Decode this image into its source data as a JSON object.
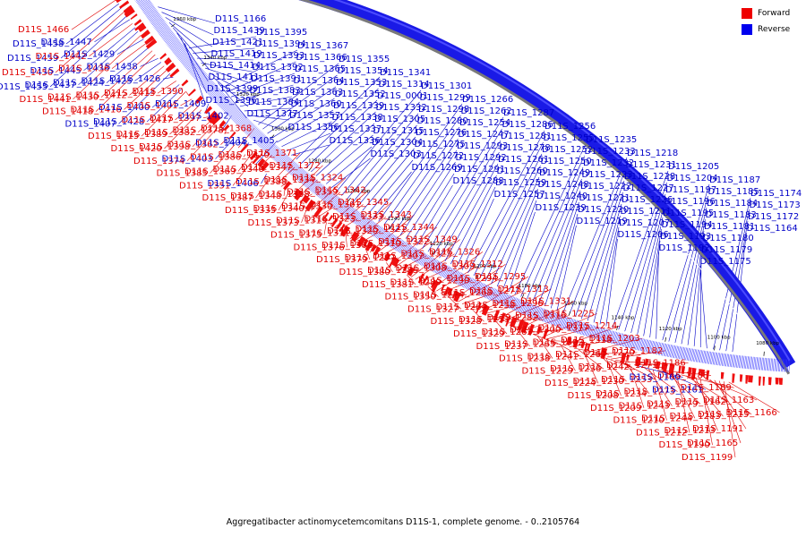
{
  "caption": "Aggregatibacter actinomycetemcomitans D11S-1, complete genome. - 0..2105764",
  "legend": [
    {
      "label": "Forward",
      "color": "#ee0000"
    },
    {
      "label": "Reverse",
      "color": "#0000ee"
    }
  ],
  "colors": {
    "forward": "#e00000",
    "reverse": "#0000c8",
    "ring_reverse": "#1a1ae6",
    "ring_forward": "#f01010",
    "backbone": "#7a7a7a"
  },
  "ticks": [
    "1080 kbp",
    "1100 kbp",
    "1120 kbp",
    "1140 kbp",
    "1160 kbp",
    "1180 kbp",
    "1200 kbp",
    "1220 kbp",
    "1240 kbp",
    "1260 kbp",
    "1280 kbp",
    "1300 kbp",
    "1320 kbp",
    "1340 kbp",
    "1360 kbp",
    "1380 kbp"
  ],
  "labels": [
    {
      "t": "D11S_1466",
      "s": "f"
    },
    {
      "t": "D11S_1458",
      "s": "r"
    },
    {
      "t": "D11S_1459",
      "s": "r"
    },
    {
      "t": "D11S_1450",
      "s": "f"
    },
    {
      "t": "D11S_1455",
      "s": "r"
    },
    {
      "t": "D11S_1447",
      "s": "r"
    },
    {
      "t": "D11S_1442",
      "s": "f"
    },
    {
      "t": "D11S_1445",
      "s": "r"
    },
    {
      "t": "D11S_1437",
      "s": "r"
    },
    {
      "t": "D11S_1441",
      "s": "f"
    },
    {
      "t": "D11S_1429",
      "s": "r"
    },
    {
      "t": "D11S_1436",
      "s": "f"
    },
    {
      "t": "D11S_1424",
      "s": "r"
    },
    {
      "t": "D11S_1430",
      "s": "f"
    },
    {
      "t": "D11S_1418",
      "s": "f"
    },
    {
      "t": "D11S_1438",
      "s": "r"
    },
    {
      "t": "D11S_1425",
      "s": "r"
    },
    {
      "t": "D11S_1412",
      "s": "f"
    },
    {
      "t": "D11S_1416",
      "s": "f"
    },
    {
      "t": "D11S_1407",
      "s": "r"
    },
    {
      "t": "D11S_1426",
      "s": "r"
    },
    {
      "t": "D11S_1413",
      "s": "f"
    },
    {
      "t": "D11S_1400",
      "s": "r"
    },
    {
      "t": "D11S_1428",
      "s": "r"
    },
    {
      "t": "D11S_1415",
      "s": "f"
    },
    {
      "t": "D11S_1390",
      "s": "f"
    },
    {
      "t": "D11S_1401",
      "s": "f"
    },
    {
      "t": "D11S_1417",
      "s": "f"
    },
    {
      "t": "D11S_1389",
      "s": "f"
    },
    {
      "t": "D11S_1420",
      "s": "f"
    },
    {
      "t": "D11S_1409",
      "s": "r"
    },
    {
      "t": "D11S_1397",
      "s": "f"
    },
    {
      "t": "D11S_1382",
      "s": "f"
    },
    {
      "t": "D11S_1398",
      "s": "f"
    },
    {
      "t": "D11S_1374",
      "s": "f"
    },
    {
      "t": "D11S_1402",
      "s": "r"
    },
    {
      "t": "D11S_1378",
      "s": "f"
    },
    {
      "t": "D11S_1362",
      "s": "f"
    },
    {
      "t": "D11S_1403",
      "s": "r"
    },
    {
      "t": "D11S_1385",
      "s": "f"
    },
    {
      "t": "D11S_1368",
      "s": "f"
    },
    {
      "t": "D11S_1404",
      "s": "r"
    },
    {
      "t": "D11S_1386",
      "s": "f"
    },
    {
      "t": "D11S_1369",
      "s": "f"
    },
    {
      "t": "D11S_1351",
      "s": "f"
    },
    {
      "t": "D11S_1405",
      "s": "r"
    },
    {
      "t": "D11S_1370",
      "s": "f"
    },
    {
      "t": "D11S_1346",
      "s": "f"
    },
    {
      "t": "D11S_1406",
      "s": "r"
    },
    {
      "t": "D11S_1387",
      "s": "f"
    },
    {
      "t": "D11S_1371",
      "s": "f"
    },
    {
      "t": "D11S_1347",
      "s": "f"
    },
    {
      "t": "D11S_1388",
      "s": "f"
    },
    {
      "t": "D11S_1348",
      "s": "f"
    },
    {
      "t": "D11S_1335",
      "s": "f"
    },
    {
      "t": "D11S_1372",
      "s": "f"
    },
    {
      "t": "D11S_1334",
      "s": "f"
    },
    {
      "t": "D11S_1358",
      "s": "f"
    },
    {
      "t": "D11S_1340",
      "s": "f"
    },
    {
      "t": "D11S_1373",
      "s": "f"
    },
    {
      "t": "D11S_1324",
      "s": "f"
    },
    {
      "t": "D11S_1359",
      "s": "f"
    },
    {
      "t": "D11S_1330",
      "s": "f"
    },
    {
      "t": "D11S_1319",
      "s": "f"
    },
    {
      "t": "D11S_1375",
      "s": "f"
    },
    {
      "t": "D11S_1342",
      "s": "f"
    },
    {
      "t": "D11S_1361",
      "s": "f"
    },
    {
      "t": "D11S_1323",
      "s": "f"
    },
    {
      "t": "D11S_1311",
      "s": "f"
    },
    {
      "t": "D11S_1376",
      "s": "f"
    },
    {
      "t": "D11S_1345",
      "s": "f"
    },
    {
      "t": "D11S_1333",
      "s": "f"
    },
    {
      "t": "D11S_1320",
      "s": "f"
    },
    {
      "t": "D11S_1306",
      "s": "f"
    },
    {
      "t": "D11S_1379",
      "s": "f"
    },
    {
      "t": "D11S_1343",
      "s": "f"
    },
    {
      "t": "D11S_1321",
      "s": "f"
    },
    {
      "t": "D11S_1310",
      "s": "f"
    },
    {
      "t": "D11S_1297",
      "s": "f"
    },
    {
      "t": "D11S_1380",
      "s": "f"
    },
    {
      "t": "D11S_1344",
      "s": "f"
    },
    {
      "t": "D11S_1322",
      "s": "f"
    },
    {
      "t": "D11S_1307",
      "s": "f"
    },
    {
      "t": "D11S_1285",
      "s": "f"
    },
    {
      "t": "D11S_1381",
      "s": "f"
    },
    {
      "t": "D11S_1349",
      "s": "f"
    },
    {
      "t": "D11S_1325",
      "s": "f"
    },
    {
      "t": "D11S_1308",
      "s": "f"
    },
    {
      "t": "D11S_1289",
      "s": "f"
    },
    {
      "t": "D11S_1350",
      "s": "f"
    },
    {
      "t": "D11S_1326",
      "s": "f"
    },
    {
      "t": "D11S_1309",
      "s": "f"
    },
    {
      "t": "D11S_1290",
      "s": "f"
    },
    {
      "t": "D11S_1274",
      "s": "f"
    },
    {
      "t": "D11S_1327",
      "s": "f"
    },
    {
      "t": "D11S_1312",
      "s": "f"
    },
    {
      "t": "D11S_1294",
      "s": "f"
    },
    {
      "t": "D11S_1268",
      "s": "f"
    },
    {
      "t": "D11S_1264",
      "s": "f"
    },
    {
      "t": "D11S_1328",
      "s": "f"
    },
    {
      "t": "D11S_1295",
      "s": "f"
    },
    {
      "t": "D11S_1277",
      "s": "f"
    },
    {
      "t": "D11S_1258",
      "s": "f"
    },
    {
      "t": "D11S_1251",
      "s": "f"
    },
    {
      "t": "D11S_1329",
      "s": "f"
    },
    {
      "t": "D11S_1313",
      "s": "f"
    },
    {
      "t": "D11S_1296",
      "s": "f"
    },
    {
      "t": "D11S_1282",
      "s": "f"
    },
    {
      "t": "D11S_1263",
      "s": "f"
    },
    {
      "t": "D11S_1237",
      "s": "f"
    },
    {
      "t": "D11S_1331",
      "s": "f"
    },
    {
      "t": "D11S_1316",
      "s": "f"
    },
    {
      "t": "D11S_1300",
      "s": "f"
    },
    {
      "t": "D11S_1265",
      "s": "f"
    },
    {
      "t": "D11S_1238",
      "s": "f"
    },
    {
      "t": "D11S_1225",
      "s": "f"
    },
    {
      "t": "D11S_1317",
      "s": "f"
    },
    {
      "t": "D11S_1302",
      "s": "f"
    },
    {
      "t": "D11S_1241",
      "s": "f"
    },
    {
      "t": "D11S_1229",
      "s": "f"
    },
    {
      "t": "D11S_1214",
      "s": "f"
    },
    {
      "t": "D11S_1318",
      "s": "f"
    },
    {
      "t": "D11S_1267",
      "s": "f"
    },
    {
      "t": "D11S_1236",
      "s": "f"
    },
    {
      "t": "D11S_1224",
      "s": "f"
    },
    {
      "t": "D11S_1203",
      "s": "f"
    },
    {
      "t": "D11S_1270",
      "s": "f"
    },
    {
      "t": "D11S_1242",
      "s": "f"
    },
    {
      "t": "D11S_1230",
      "s": "f"
    },
    {
      "t": "D11S_1208",
      "s": "f"
    },
    {
      "t": "D11S_1182",
      "s": "f"
    },
    {
      "t": "D11S_1271",
      "s": "f"
    },
    {
      "t": "D11S_1253",
      "s": "f"
    },
    {
      "t": "D11S_1234",
      "s": "f"
    },
    {
      "t": "D11S_1209",
      "s": "f"
    },
    {
      "t": "D11S_1186",
      "s": "f"
    },
    {
      "t": "D11S_1160",
      "s": "r"
    },
    {
      "t": "D11S_1273",
      "s": "f"
    },
    {
      "t": "D11S_1243",
      "s": "f"
    },
    {
      "t": "D11S_1210",
      "s": "f"
    },
    {
      "t": "D11S_1188",
      "s": "f"
    },
    {
      "t": "D11S_1161",
      "s": "r"
    },
    {
      "t": "D11S_1279",
      "s": "f"
    },
    {
      "t": "D11S_1244",
      "s": "f"
    },
    {
      "t": "D11S_1212",
      "s": "f"
    },
    {
      "t": "D11S_1189",
      "s": "f"
    },
    {
      "t": "D11S_1162",
      "s": "f"
    },
    {
      "t": "D11S_1283",
      "s": "f"
    },
    {
      "t": "D11S_1213",
      "s": "f"
    },
    {
      "t": "D11S_1190",
      "s": "f"
    },
    {
      "t": "D11S_1163",
      "s": "f"
    },
    {
      "t": "D11S_1215",
      "s": "f"
    },
    {
      "t": "D11S_1191",
      "s": "f"
    },
    {
      "t": "D11S_1165",
      "s": "f"
    },
    {
      "t": "D11S_1199",
      "s": "f"
    },
    {
      "t": "D11S_1166",
      "s": "f"
    },
    {
      "t": "D11S_1439",
      "s": "r"
    },
    {
      "t": "D11S_1421",
      "s": "r"
    },
    {
      "t": "D11S_1419",
      "s": "r"
    },
    {
      "t": "D11S_1414",
      "s": "r"
    },
    {
      "t": "D11S_1411",
      "s": "r"
    },
    {
      "t": "D11S_1399",
      "s": "r"
    },
    {
      "t": "D11S_1396",
      "s": "r"
    },
    {
      "t": "D11S_1395",
      "s": "r"
    },
    {
      "t": "D11S_1394",
      "s": "r"
    },
    {
      "t": "D11S_1393",
      "s": "r"
    },
    {
      "t": "D11S_1392",
      "s": "r"
    },
    {
      "t": "D11S_1391",
      "s": "r"
    },
    {
      "t": "D11S_1383",
      "s": "r"
    },
    {
      "t": "D11S_1384",
      "s": "r"
    },
    {
      "t": "D11S_1377",
      "s": "r"
    },
    {
      "t": "D11S_1367",
      "s": "r"
    },
    {
      "t": "D11S_1366",
      "s": "r"
    },
    {
      "t": "D11S_1365",
      "s": "r"
    },
    {
      "t": "D11S_1364",
      "s": "r"
    },
    {
      "t": "D11S_1363",
      "s": "r"
    },
    {
      "t": "D11S_1360",
      "s": "r"
    },
    {
      "t": "D11S_1357",
      "s": "r"
    },
    {
      "t": "D11S_1356",
      "s": "r"
    },
    {
      "t": "D11S_1355",
      "s": "r"
    },
    {
      "t": "D11S_1354",
      "s": "r"
    },
    {
      "t": "D11S_1353",
      "s": "r"
    },
    {
      "t": "D11S_1352",
      "s": "r"
    },
    {
      "t": "D11S_1339",
      "s": "r"
    },
    {
      "t": "D11S_1338",
      "s": "r"
    },
    {
      "t": "D11S_1337",
      "s": "r"
    },
    {
      "t": "D11S_1336",
      "s": "r"
    },
    {
      "t": "D11S_1341",
      "s": "r"
    },
    {
      "t": "D11S_1314",
      "s": "r"
    },
    {
      "t": "D11S_0001",
      "s": "r"
    },
    {
      "t": "D11S_1332",
      "s": "r"
    },
    {
      "t": "D11S_1305",
      "s": "r"
    },
    {
      "t": "D11S_1315",
      "s": "r"
    },
    {
      "t": "D11S_1304",
      "s": "r"
    },
    {
      "t": "D11S_1303",
      "s": "r"
    },
    {
      "t": "D11S_1301",
      "s": "r"
    },
    {
      "t": "D11S_1299",
      "s": "r"
    },
    {
      "t": "D11S_1298",
      "s": "r"
    },
    {
      "t": "D11S_1280",
      "s": "r"
    },
    {
      "t": "D11S_1276",
      "s": "r"
    },
    {
      "t": "D11S_1275",
      "s": "r"
    },
    {
      "t": "D11S_1272",
      "s": "r"
    },
    {
      "t": "D11S_1269",
      "s": "r"
    },
    {
      "t": "D11S_1266",
      "s": "r"
    },
    {
      "t": "D11S_1262",
      "s": "r"
    },
    {
      "t": "D11S_1254",
      "s": "r"
    },
    {
      "t": "D11S_1247",
      "s": "r"
    },
    {
      "t": "D11S_1293",
      "s": "r"
    },
    {
      "t": "D11S_1292",
      "s": "r"
    },
    {
      "t": "D11S_1291",
      "s": "r"
    },
    {
      "t": "D11S_1288",
      "s": "r"
    },
    {
      "t": "D11S_1287",
      "s": "r"
    },
    {
      "t": "D11S_1286",
      "s": "r"
    },
    {
      "t": "D11S_1281",
      "s": "r"
    },
    {
      "t": "D11S_1278",
      "s": "r"
    },
    {
      "t": "D11S_1261",
      "s": "r"
    },
    {
      "t": "D11S_1260",
      "s": "r"
    },
    {
      "t": "D11S_1259",
      "s": "r"
    },
    {
      "t": "D11S_1257",
      "s": "r"
    },
    {
      "t": "D11S_1256",
      "s": "r"
    },
    {
      "t": "D11S_1255",
      "s": "r"
    },
    {
      "t": "D11S_1252",
      "s": "r"
    },
    {
      "t": "D11S_1250",
      "s": "r"
    },
    {
      "t": "D11S_1249",
      "s": "r"
    },
    {
      "t": "D11S_1248",
      "s": "r"
    },
    {
      "t": "D11S_1240",
      "s": "r"
    },
    {
      "t": "D11S_1239",
      "s": "r"
    },
    {
      "t": "D11S_1235",
      "s": "r"
    },
    {
      "t": "D11S_1233",
      "s": "r"
    },
    {
      "t": "D11S_1232",
      "s": "r"
    },
    {
      "t": "D11S_1223",
      "s": "r"
    },
    {
      "t": "D11S_1222",
      "s": "r"
    },
    {
      "t": "D11S_1221",
      "s": "r"
    },
    {
      "t": "D11S_1220",
      "s": "r"
    },
    {
      "t": "D11S_1219",
      "s": "r"
    },
    {
      "t": "D11S_1218",
      "s": "r"
    },
    {
      "t": "D11S_1231",
      "s": "r"
    },
    {
      "t": "D11S_1228",
      "s": "r"
    },
    {
      "t": "D11S_1227",
      "s": "r"
    },
    {
      "t": "D11S_1226",
      "s": "r"
    },
    {
      "t": "D11S_1211",
      "s": "r"
    },
    {
      "t": "D11S_1207",
      "s": "r"
    },
    {
      "t": "D11S_1206",
      "s": "r"
    },
    {
      "t": "D11S_1205",
      "s": "r"
    },
    {
      "t": "D11S_1204",
      "s": "r"
    },
    {
      "t": "D11S_1197",
      "s": "r"
    },
    {
      "t": "D11S_1196",
      "s": "r"
    },
    {
      "t": "D11S_1195",
      "s": "r"
    },
    {
      "t": "D11S_1194",
      "s": "r"
    },
    {
      "t": "D11S_1193",
      "s": "r"
    },
    {
      "t": "D11S_1192",
      "s": "r"
    },
    {
      "t": "D11S_1187",
      "s": "r"
    },
    {
      "t": "D11S_1185",
      "s": "r"
    },
    {
      "t": "D11S_1184",
      "s": "r"
    },
    {
      "t": "D11S_1183",
      "s": "r"
    },
    {
      "t": "D11S_1181",
      "s": "r"
    },
    {
      "t": "D11S_1180",
      "s": "r"
    },
    {
      "t": "D11S_1179",
      "s": "r"
    },
    {
      "t": "D11S_1175",
      "s": "r"
    },
    {
      "t": "D11S_1174",
      "s": "r"
    },
    {
      "t": "D11S_1173",
      "s": "r"
    },
    {
      "t": "D11S_1172",
      "s": "r"
    },
    {
      "t": "D11S_1164",
      "s": "r"
    }
  ]
}
